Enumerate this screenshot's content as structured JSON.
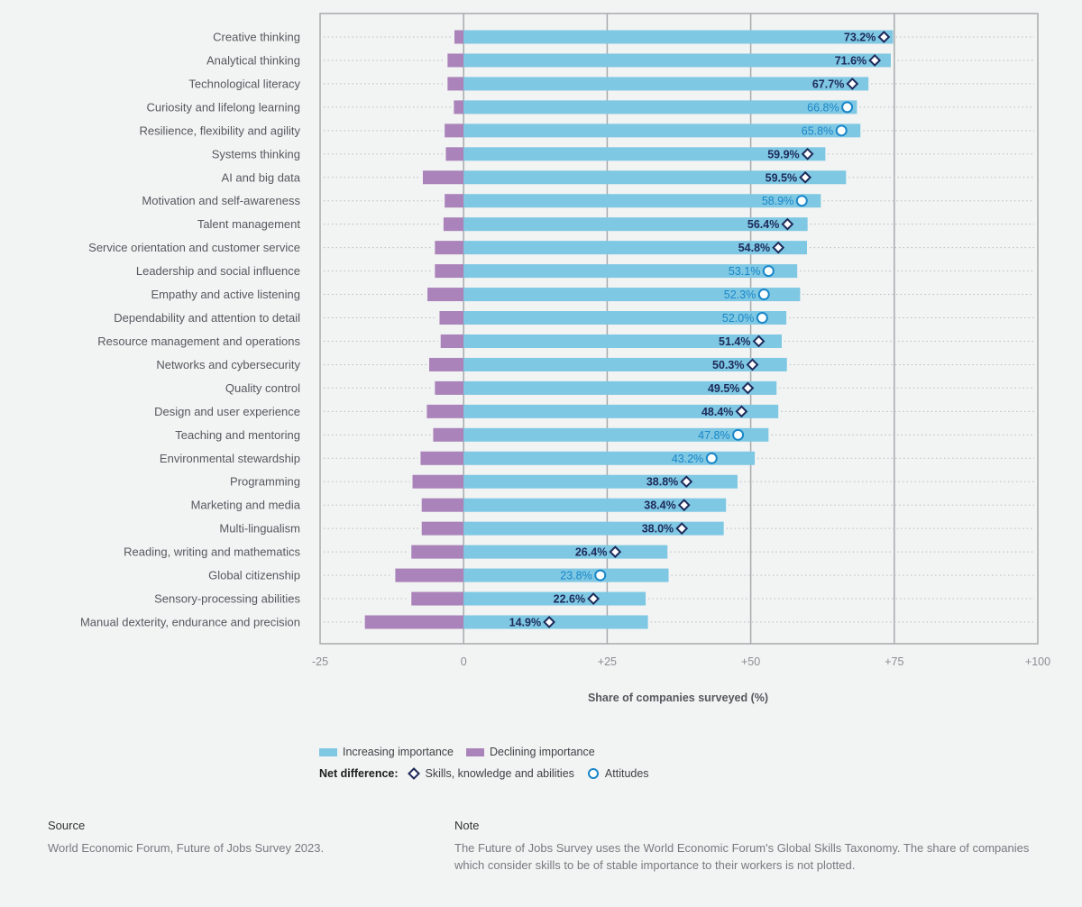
{
  "chart_data": {
    "type": "bar",
    "orientation": "horizontal",
    "title": "",
    "xlabel": "Share of companies surveyed (%)",
    "ylabel": "",
    "xlim": [
      -25,
      100
    ],
    "xticks": [
      -25,
      0,
      25,
      50,
      75,
      100
    ],
    "xtick_labels": [
      "-25",
      "0",
      "+25",
      "+50",
      "+75",
      "+100"
    ],
    "grid": true,
    "legend_position": "bottom",
    "categories": [
      "Creative thinking",
      "Analytical thinking",
      "Technological literacy",
      "Curiosity and lifelong learning",
      "Resilience, flexibility and agility",
      "Systems thinking",
      "AI and big data",
      "Motivation and self-awareness",
      "Talent management",
      "Service orientation and customer service",
      "Leadership and social influence",
      "Empathy and active listening",
      "Dependability and attention to detail",
      "Resource management and operations",
      "Networks and cybersecurity",
      "Quality control",
      "Design and user experience",
      "Teaching and mentoring",
      "Environmental stewardship",
      "Programming",
      "Marketing and media",
      "Multi-lingualism",
      "Reading, writing and mathematics",
      "Global citizenship",
      "Sensory-processing abilities",
      "Manual dexterity, endurance and precision"
    ],
    "series": [
      {
        "name": "Increasing importance",
        "color": "#7ec8e3",
        "values": [
          74.8,
          74.4,
          70.5,
          68.5,
          69.1,
          63.0,
          66.6,
          62.2,
          59.9,
          59.8,
          58.1,
          58.6,
          56.2,
          55.4,
          56.3,
          54.5,
          54.8,
          53.1,
          50.7,
          47.7,
          45.7,
          45.3,
          35.5,
          35.7,
          31.7,
          32.1
        ]
      },
      {
        "name": "Declining importance",
        "color": "#a983b9",
        "values": [
          -1.6,
          -2.8,
          -2.8,
          -1.7,
          -3.3,
          -3.1,
          -7.1,
          -3.3,
          -3.5,
          -5.0,
          -5.0,
          -6.3,
          -4.2,
          -4.0,
          -6.0,
          -5.0,
          -6.4,
          -5.3,
          -7.5,
          -8.9,
          -7.3,
          -7.3,
          -9.1,
          -11.9,
          -9.1,
          -17.2
        ]
      }
    ],
    "net_difference": {
      "values": [
        73.2,
        71.6,
        67.7,
        66.8,
        65.8,
        59.9,
        59.5,
        58.9,
        56.4,
        54.8,
        53.1,
        52.3,
        52.0,
        51.4,
        50.3,
        49.5,
        48.4,
        47.8,
        43.2,
        38.8,
        38.4,
        38.0,
        26.4,
        23.8,
        22.6,
        14.9
      ],
      "labels": [
        "73.2%",
        "71.6%",
        "67.7%",
        "66.8%",
        "65.8%",
        "59.9%",
        "59.5%",
        "58.9%",
        "56.4%",
        "54.8%",
        "53.1%",
        "52.3%",
        "52.0%",
        "51.4%",
        "50.3%",
        "49.5%",
        "48.4%",
        "47.8%",
        "43.2%",
        "38.8%",
        "38.4%",
        "38.0%",
        "26.4%",
        "23.8%",
        "22.6%",
        "14.9%"
      ],
      "types": [
        "skill",
        "skill",
        "skill",
        "attitude",
        "attitude",
        "skill",
        "skill",
        "attitude",
        "skill",
        "skill",
        "attitude",
        "attitude",
        "attitude",
        "skill",
        "skill",
        "skill",
        "skill",
        "attitude",
        "attitude",
        "skill",
        "skill",
        "skill",
        "skill",
        "attitude",
        "skill",
        "skill"
      ]
    }
  },
  "colors": {
    "increasing": "#7ec8e3",
    "declining": "#a983b9",
    "skill_marker": "#1e2a5a",
    "attitude_marker": "#1a86c8"
  },
  "legend": {
    "increasing_label": "Increasing importance",
    "declining_label": "Declining importance",
    "net_label": "Net difference:",
    "skill_label": "Skills, knowledge and abilities",
    "attitude_label": "Attitudes",
    "skill_icon": "diamond-icon",
    "attitude_icon": "circle-icon"
  },
  "footer": {
    "source_heading": "Source",
    "source_text": "World Economic Forum, Future of Jobs Survey 2023.",
    "note_heading": "Note",
    "note_text": "The Future of Jobs Survey uses the World Economic Forum's Global Skills Taxonomy. The share of companies which consider skills to be of stable importance to their workers is not plotted."
  }
}
